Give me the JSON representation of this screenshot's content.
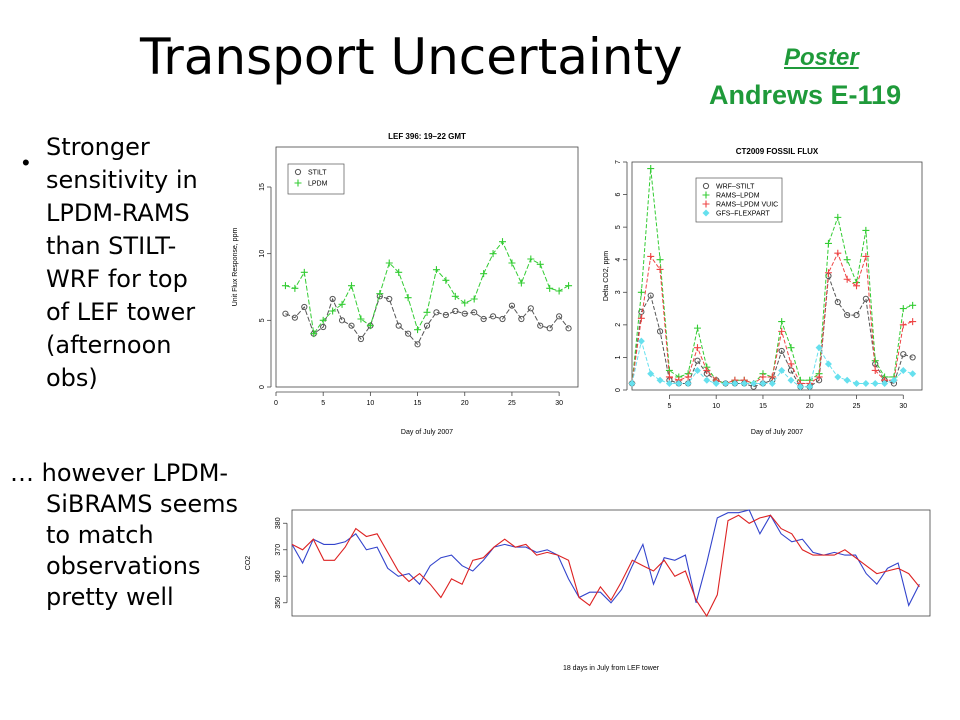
{
  "slide": {
    "title": "Transport Uncertainty",
    "poster_link": "Poster",
    "poster_ref": "Andrews E-119",
    "bullet_lines": [
      "Stronger",
      "sensitivity in",
      "LPDM-RAMS",
      "than STILT-",
      "WRF for top",
      "of LEF tower",
      "(afternoon",
      "obs)"
    ],
    "note_lines": [
      "… however LPDM-",
      "SiBRAMS seems",
      "to match",
      "observations",
      "pretty well"
    ]
  },
  "colors": {
    "poster_green": "#1f9a3a",
    "stilt_gray": "#555555",
    "lpdm_green": "#33cc33",
    "rams_lpdm_vuic": "#ee4444",
    "gfs_flexpart": "#66e0ee",
    "obs_blue": "#3344cc",
    "model_red": "#dd2222"
  },
  "chart_data": [
    {
      "type": "line",
      "title": "LEF 396: 19–22 GMT",
      "xlabel": "Day of July 2007",
      "ylabel": "Unit Flux Response, ppm",
      "xlim": [
        0,
        32
      ],
      "ylim": [
        0,
        18
      ],
      "xticks": [
        0,
        5,
        10,
        15,
        20,
        25,
        30
      ],
      "yticks": [
        0,
        5,
        10,
        15
      ],
      "legend": "top-left",
      "x": [
        1,
        2,
        3,
        4,
        5,
        6,
        7,
        8,
        9,
        10,
        11,
        12,
        13,
        14,
        15,
        16,
        17,
        18,
        19,
        20,
        21,
        22,
        23,
        24,
        25,
        26,
        27,
        28,
        29,
        30,
        31
      ],
      "series": [
        {
          "name": "STILT",
          "marker": "circle",
          "values": [
            5.5,
            5.2,
            6.0,
            4.0,
            4.5,
            6.6,
            5.0,
            4.6,
            3.6,
            4.6,
            6.8,
            6.6,
            4.6,
            4.0,
            3.2,
            4.6,
            5.6,
            5.4,
            5.7,
            5.5,
            5.6,
            5.1,
            5.3,
            5.1,
            6.1,
            5.1,
            5.9,
            4.6,
            4.4,
            5.3,
            4.4
          ]
        },
        {
          "name": "LPDM",
          "marker": "plus",
          "values": [
            7.6,
            7.4,
            8.6,
            4.0,
            5.0,
            5.7,
            6.2,
            7.6,
            5.1,
            4.6,
            7.0,
            9.3,
            8.6,
            6.7,
            4.3,
            5.6,
            8.8,
            8.0,
            6.8,
            6.3,
            6.6,
            8.5,
            10.0,
            10.9,
            9.3,
            7.8,
            9.6,
            9.2,
            7.4,
            7.2,
            7.6
          ]
        }
      ]
    },
    {
      "type": "line",
      "title": "CT2009 FOSSIL FLUX",
      "xlabel": "Day of July 2007",
      "ylabel": "Delta CO2, ppm",
      "xlim": [
        1,
        32
      ],
      "ylim": [
        0,
        7
      ],
      "xticks": [
        5,
        10,
        15,
        20,
        25,
        30
      ],
      "yticks": [
        0,
        1,
        2,
        3,
        4,
        5,
        6,
        7
      ],
      "legend": "top-left",
      "x": [
        1,
        2,
        3,
        4,
        5,
        6,
        7,
        8,
        9,
        10,
        11,
        12,
        13,
        14,
        15,
        16,
        17,
        18,
        19,
        20,
        21,
        22,
        23,
        24,
        25,
        26,
        27,
        28,
        29,
        30,
        31
      ],
      "series": [
        {
          "name": "WRF–STILT",
          "marker": "circle",
          "values": [
            0.2,
            2.4,
            2.9,
            1.8,
            0.3,
            0.2,
            0.2,
            0.9,
            0.5,
            0.3,
            0.2,
            0.2,
            0.2,
            0.1,
            0.2,
            0.3,
            1.2,
            0.6,
            0.1,
            0.1,
            0.3,
            3.5,
            2.7,
            2.3,
            2.3,
            2.8,
            0.8,
            0.3,
            0.2,
            1.1,
            1.0
          ]
        },
        {
          "name": "RAMS–LPDM",
          "marker": "plus",
          "values": [
            0.2,
            3.0,
            6.8,
            4.0,
            0.6,
            0.4,
            0.5,
            1.9,
            0.7,
            0.3,
            0.2,
            0.3,
            0.3,
            0.2,
            0.5,
            0.4,
            2.1,
            1.3,
            0.3,
            0.3,
            0.5,
            4.5,
            5.3,
            4.0,
            3.3,
            4.9,
            0.9,
            0.4,
            0.4,
            2.5,
            2.6
          ]
        },
        {
          "name": "RAMS–LPDM VUIC",
          "marker": "plus",
          "values": [
            0.2,
            2.2,
            4.1,
            3.7,
            0.4,
            0.3,
            0.4,
            1.3,
            0.6,
            0.3,
            0.2,
            0.3,
            0.3,
            0.2,
            0.4,
            0.4,
            1.8,
            0.8,
            0.2,
            0.2,
            0.4,
            3.6,
            4.2,
            3.4,
            3.2,
            4.1,
            0.6,
            0.3,
            0.3,
            2.0,
            2.1
          ]
        },
        {
          "name": "GFS–FLEXPART",
          "marker": "diamond",
          "values": [
            0.2,
            1.5,
            0.5,
            0.3,
            0.2,
            0.2,
            0.2,
            0.6,
            0.3,
            0.2,
            0.2,
            0.2,
            0.2,
            0.2,
            0.2,
            0.2,
            0.6,
            0.3,
            0.1,
            0.1,
            1.3,
            0.8,
            0.4,
            0.3,
            0.2,
            0.2,
            0.2,
            0.2,
            0.3,
            0.6,
            0.5
          ]
        }
      ]
    },
    {
      "type": "line",
      "title": "",
      "xlabel": "18 days in July from LEF tower",
      "ylabel": "CO2",
      "xlim": [
        0,
        18
      ],
      "ylim": [
        345,
        385
      ],
      "yticks": [
        350,
        360,
        370,
        380
      ],
      "x": [
        0,
        0.3,
        0.6,
        0.9,
        1.2,
        1.5,
        1.8,
        2.1,
        2.4,
        2.7,
        3.0,
        3.3,
        3.6,
        3.9,
        4.2,
        4.5,
        4.8,
        5.1,
        5.4,
        5.7,
        6.0,
        6.3,
        6.6,
        6.9,
        7.2,
        7.5,
        7.8,
        8.1,
        8.4,
        8.7,
        9.0,
        9.3,
        9.6,
        9.9,
        10.2,
        10.5,
        10.8,
        11.1,
        11.4,
        11.7,
        12.0,
        12.3,
        12.6,
        12.9,
        13.2,
        13.5,
        13.8,
        14.1,
        14.4,
        14.7,
        15.0,
        15.3,
        15.6,
        15.9,
        16.2,
        16.5,
        16.8,
        17.1,
        17.4,
        17.7
      ],
      "series": [
        {
          "name": "",
          "values": [
            372,
            365,
            374,
            372,
            372,
            373,
            376,
            370,
            371,
            363,
            360,
            361,
            357,
            364,
            367,
            368,
            364,
            362,
            366,
            371,
            372,
            371,
            371,
            369,
            370,
            368,
            359,
            352,
            354,
            354,
            350,
            355,
            364,
            372,
            357,
            367,
            366,
            368,
            350,
            365,
            382,
            384,
            384,
            385,
            376,
            383,
            376,
            373,
            374,
            369,
            368,
            369,
            368,
            368,
            361,
            357,
            363,
            365,
            349,
            357
          ]
        },
        {
          "name": "",
          "values": [
            372,
            370,
            374,
            366,
            366,
            371,
            378,
            375,
            376,
            369,
            362,
            358,
            361,
            357,
            352,
            359,
            357,
            366,
            367,
            371,
            374,
            371,
            372,
            368,
            369,
            368,
            366,
            352,
            349,
            356,
            351,
            358,
            366,
            364,
            362,
            366,
            360,
            362,
            351,
            345,
            353,
            381,
            383,
            380,
            382,
            383,
            378,
            376,
            370,
            368,
            368,
            368,
            370,
            367,
            364,
            361,
            362,
            363,
            361,
            356
          ]
        }
      ]
    }
  ]
}
